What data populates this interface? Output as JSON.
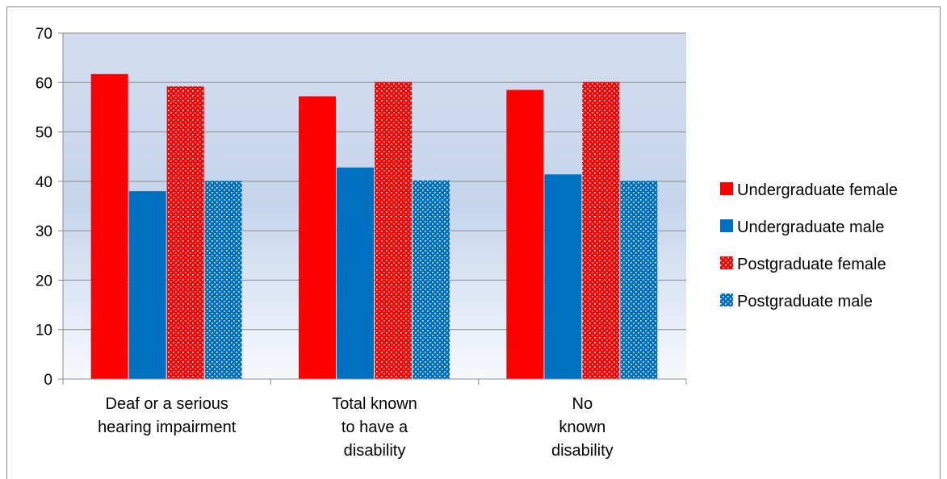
{
  "chart_data": {
    "type": "bar",
    "categories": [
      [
        "Deaf or a serious",
        "hearing impairment"
      ],
      [
        "Total known",
        "to have a",
        "disability"
      ],
      [
        "No",
        "known",
        "disability"
      ]
    ],
    "series": [
      {
        "name": "Undergraduate female",
        "values": [
          61.7,
          57.2,
          58.5
        ],
        "color": "#ff0000",
        "pattern": "solid"
      },
      {
        "name": "Undergraduate male",
        "values": [
          38.0,
          42.8,
          41.4
        ],
        "color": "#0070c0",
        "pattern": "solid"
      },
      {
        "name": "Postgraduate female",
        "values": [
          59.2,
          60.1,
          60.1
        ],
        "color": "#ff0000",
        "pattern": "dots"
      },
      {
        "name": "Postgraduate male",
        "values": [
          40.1,
          40.2,
          40.1
        ],
        "color": "#0070c0",
        "pattern": "dots"
      }
    ],
    "yticks": [
      "0",
      "10",
      "20",
      "30",
      "40",
      "50",
      "60",
      "70"
    ],
    "ylim": [
      0,
      70
    ],
    "title": "",
    "xlabel": "",
    "ylabel": "",
    "grid": true,
    "legend": "right",
    "plot_background": "gradient #d6e0f0 to #ffffff"
  }
}
